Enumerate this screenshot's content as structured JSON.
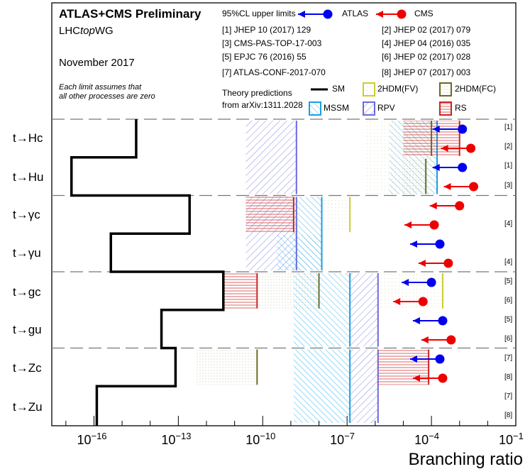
{
  "header": {
    "title": "ATLAS+CMS Preliminary",
    "group_prefix": "LHC",
    "group_italic": "top",
    "group_suffix": "WG",
    "date": "November 2017",
    "note_line1": "Each limit assumes that",
    "note_line2": "all other processes are zero"
  },
  "legend": {
    "upper_limits": "95%CL upper limits",
    "atlas": "ATLAS",
    "cms": "CMS",
    "theory_line1": "Theory predictions",
    "theory_line2": "from arXiv:1311.2028",
    "models": {
      "sm": "SM",
      "fv": "2HDM(FV)",
      "fc": "2HDM(FC)",
      "mssm": "MSSM",
      "rpv": "RPV",
      "rs": "RS"
    },
    "colors": {
      "atlas": "#0000ee",
      "cms": "#ee0000",
      "sm": "#000000",
      "fv": "#cccc33",
      "fc": "#6b6b1e",
      "mssm": "#1a9fe0",
      "rpv": "#6a6ae0",
      "rs": "#cc2222"
    }
  },
  "references": [
    "[1] JHEP 10 (2017) 129",
    "[2] JHEP 02 (2017) 079",
    "[3] CMS-PAS-TOP-17-003",
    "[4] JHEP 04 (2016) 035",
    "[5] EPJC 76 (2016) 55",
    "[6] JHEP 02 (2017) 028",
    "[7] ATLAS-CONF-2017-070",
    "[8] JHEP 07 (2017) 003"
  ],
  "chart_data": {
    "type": "horizontal-limits",
    "xlabel": "Branching ratio",
    "xscale": "log",
    "xlim_exp": [
      -17.5,
      -1
    ],
    "xticks_exp": [
      -16,
      -13,
      -10,
      -7,
      -4,
      -1
    ],
    "categories": [
      "t→Hc",
      "t→Hu",
      "t→γc",
      "t→γu",
      "t→gc",
      "t→gu",
      "t→Zc",
      "t→Zu"
    ],
    "sm_log10": [
      -14.5,
      -16.8,
      -12.6,
      -15.4,
      -11.4,
      -13.6,
      -13.1,
      -15.9
    ],
    "theory_log10": [
      {
        "model": "RPV",
        "from": -10.6,
        "to": -8.8,
        "rows": [
          0,
          1
        ]
      },
      {
        "model": "2HDM(FV)",
        "from": -6.4,
        "to": -3.8,
        "rows": [
          0,
          1
        ]
      },
      {
        "model": "2HDM(FC)",
        "from": -5.0,
        "to": -4.0,
        "rows": [
          0
        ]
      },
      {
        "model": "2HDM(FC)",
        "from": -5.0,
        "to": -4.2,
        "rows": [
          1
        ]
      },
      {
        "model": "MSSM",
        "from": -5.5,
        "to": -3.8,
        "rows": [
          0,
          1
        ]
      },
      {
        "model": "RS",
        "from": -5.0,
        "to": -3.0,
        "rows": [
          0
        ]
      },
      {
        "model": "RPV",
        "from": -10.6,
        "to": -8.8,
        "rows": [
          2,
          3
        ]
      },
      {
        "model": "RS",
        "from": -10.6,
        "to": -8.9,
        "rows": [
          2
        ]
      },
      {
        "model": "MSSM",
        "from": -8.9,
        "to": -7.9,
        "rows": [
          2,
          3
        ]
      },
      {
        "model": "2HDM(FV)",
        "from": -7.9,
        "to": -6.9,
        "rows": [
          2
        ]
      },
      {
        "model": "MSSM",
        "from": -9.5,
        "to": -7.9,
        "rows": [
          3
        ]
      },
      {
        "model": "RS",
        "from": -11.4,
        "to": -10.2,
        "rows": [
          4
        ]
      },
      {
        "model": "2HDM(FC)",
        "from": -10.2,
        "to": -8.0,
        "rows": [
          4
        ]
      },
      {
        "model": "MSSM",
        "from": -8.9,
        "to": -6.9,
        "rows": [
          4,
          5
        ]
      },
      {
        "model": "RPV",
        "from": -6.9,
        "to": -5.9,
        "rows": [
          4,
          5
        ]
      },
      {
        "model": "2HDM(FV)",
        "from": -5.9,
        "to": -3.6,
        "rows": [
          4
        ]
      },
      {
        "model": "2HDM(FC)",
        "from": -12.4,
        "to": -10.2,
        "rows": [
          6
        ]
      },
      {
        "model": "MSSM",
        "from": -8.9,
        "to": -6.9,
        "rows": [
          6,
          7
        ]
      },
      {
        "model": "RPV",
        "from": -6.9,
        "to": -5.9,
        "rows": [
          6,
          7
        ]
      },
      {
        "model": "RS",
        "from": -5.9,
        "to": -4.1,
        "rows": [
          6
        ]
      }
    ],
    "limits": [
      {
        "exp": "ATLAS",
        "category": "t→Hc",
        "log10": -2.9,
        "ref": "[1]"
      },
      {
        "exp": "CMS",
        "category": "t→Hc",
        "log10": -2.6,
        "ref": "[2]"
      },
      {
        "exp": "ATLAS",
        "category": "t→Hu",
        "log10": -2.9,
        "ref": "[1]"
      },
      {
        "exp": "CMS",
        "category": "t→Hu",
        "log10": -2.5,
        "ref": "[3]"
      },
      {
        "exp": "CMS",
        "category": "t→γc",
        "log10": -3.0,
        "ref": "[4]"
      },
      {
        "exp": "CMS",
        "category": "t→γu",
        "log10": -3.9,
        "ref": "[4]"
      },
      {
        "exp": "ATLAS",
        "category": "t→gc",
        "log10": -3.7,
        "ref": "[5]"
      },
      {
        "exp": "CMS",
        "category": "t→gc",
        "log10": -3.4,
        "ref": "[6]"
      },
      {
        "exp": "ATLAS",
        "category": "t→gu",
        "log10": -4.0,
        "ref": "[5]"
      },
      {
        "exp": "CMS",
        "category": "t→gu",
        "log10": -4.3,
        "ref": "[6]"
      },
      {
        "exp": "ATLAS",
        "category": "t→Zc",
        "log10": -3.6,
        "ref": "[7]"
      },
      {
        "exp": "CMS",
        "category": "t→Zc",
        "log10": -3.3,
        "ref": "[8]"
      },
      {
        "exp": "ATLAS",
        "category": "t→Zu",
        "log10": -3.7,
        "ref": "[7]"
      },
      {
        "exp": "CMS",
        "category": "t→Zu",
        "log10": -3.6,
        "ref": "[8]"
      }
    ]
  }
}
